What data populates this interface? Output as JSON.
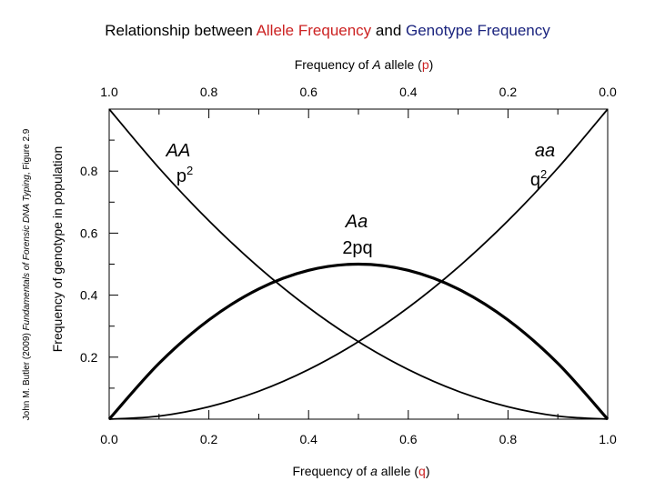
{
  "chart_data": {
    "type": "line",
    "title": {
      "prefix": "Relationship between ",
      "allele": "Allele Frequency",
      "middle": " and ",
      "genotype": "Genotype Frequency"
    },
    "top_axis": {
      "label_pre": "Frequency of ",
      "label_var": "A",
      "label_mid": " allele (",
      "label_sym": "p",
      "label_post": ")",
      "ticks": [
        {
          "q": 0.0,
          "label": "1.0"
        },
        {
          "q": 0.2,
          "label": "0.8"
        },
        {
          "q": 0.4,
          "label": "0.6"
        },
        {
          "q": 0.6,
          "label": "0.4"
        },
        {
          "q": 0.8,
          "label": "0.2"
        },
        {
          "q": 1.0,
          "label": "0.0"
        }
      ]
    },
    "bottom_axis": {
      "label_pre": "Frequency of ",
      "label_var": "a",
      "label_mid": " allele (",
      "label_sym": "q",
      "label_post": ")",
      "ticks": [
        {
          "q": 0.0,
          "label": "0.0"
        },
        {
          "q": 0.2,
          "label": "0.2"
        },
        {
          "q": 0.4,
          "label": "0.4"
        },
        {
          "q": 0.6,
          "label": "0.6"
        },
        {
          "q": 0.8,
          "label": "0.8"
        },
        {
          "q": 1.0,
          "label": "1.0"
        }
      ]
    },
    "y_axis": {
      "label": "Frequency of genotype in population",
      "ticks": [
        {
          "y": 0.2,
          "label": "0.2"
        },
        {
          "y": 0.4,
          "label": "0.4"
        },
        {
          "y": 0.6,
          "label": "0.6"
        },
        {
          "y": 0.8,
          "label": "0.8"
        }
      ],
      "ylim": [
        0,
        1
      ]
    },
    "xlim": [
      0,
      1
    ],
    "grid": false,
    "series": [
      {
        "key": "AA",
        "name": "AA",
        "formula_base": "p",
        "formula_sup": "2",
        "x": [
          0.0,
          0.1,
          0.2,
          0.3,
          0.4,
          0.5,
          0.6,
          0.7,
          0.8,
          0.9,
          1.0
        ],
        "y": [
          1.0,
          0.81,
          0.64,
          0.49,
          0.36,
          0.25,
          0.16,
          0.09,
          0.04,
          0.01,
          0.0
        ],
        "stroke": "#000000",
        "weight": "normal"
      },
      {
        "key": "aa",
        "name": "aa",
        "formula_base": "q",
        "formula_sup": "2",
        "x": [
          0.0,
          0.1,
          0.2,
          0.3,
          0.4,
          0.5,
          0.6,
          0.7,
          0.8,
          0.9,
          1.0
        ],
        "y": [
          0.0,
          0.01,
          0.04,
          0.09,
          0.16,
          0.25,
          0.36,
          0.49,
          0.64,
          0.81,
          1.0
        ],
        "stroke": "#000000",
        "weight": "normal"
      },
      {
        "key": "Aa",
        "name": "Aa",
        "formula_base": "2pq",
        "formula_sup": "",
        "x": [
          0.0,
          0.1,
          0.2,
          0.3,
          0.4,
          0.5,
          0.6,
          0.7,
          0.8,
          0.9,
          1.0
        ],
        "y": [
          0.0,
          0.18,
          0.32,
          0.42,
          0.48,
          0.5,
          0.48,
          0.42,
          0.32,
          0.18,
          0.0
        ],
        "stroke": "#000000",
        "weight": "bold"
      }
    ],
    "colors": {
      "allele": "#cc2222",
      "genotype": "#1a237e"
    }
  },
  "citation": {
    "author": "John M. Butler (2009) ",
    "book": "Fundamentals of Forensic DNA Typing",
    "figure": ", Figure 2.9"
  }
}
